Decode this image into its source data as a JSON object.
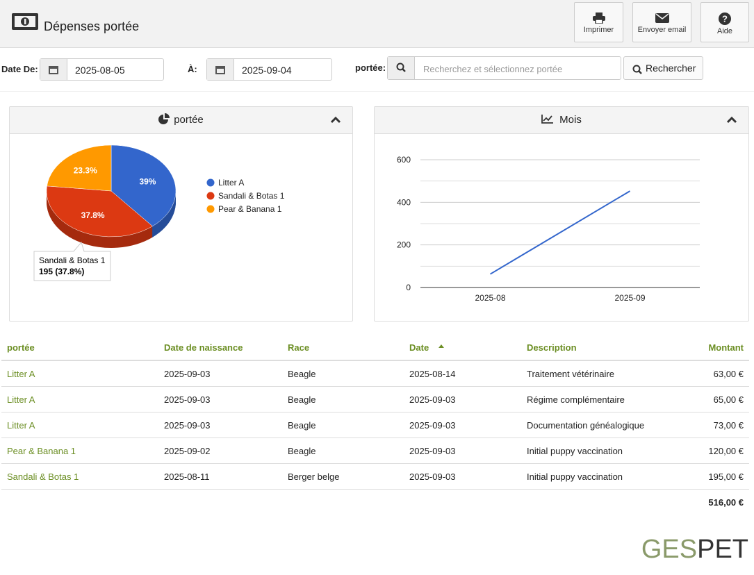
{
  "header": {
    "title": "Dépenses portée",
    "buttons": [
      "Imprimer",
      "Envoyer email",
      "Aide"
    ]
  },
  "filters": {
    "date_from_label": "Date De:",
    "date_from": "2025-08-05",
    "date_to_label": "À:",
    "date_to": "2025-09-04",
    "litter_label": "portée:",
    "search_placeholder": "Recherchez et sélectionnez portée",
    "search_button": "Rechercher"
  },
  "chart_data": [
    {
      "type": "pie",
      "title": "portée",
      "categories": [
        "Litter A",
        "Sandali & Botas 1",
        "Pear & Banana 1"
      ],
      "values": [
        39,
        37.8,
        23.3
      ],
      "value_labels": [
        "39%",
        "37.8%",
        "23.3%"
      ],
      "colors": [
        "#3366cc",
        "#dc3912",
        "#ff9900"
      ],
      "legend": "right",
      "tooltip": "195 (37.8%)"
    },
    {
      "type": "line",
      "title": "Mois",
      "categories": [
        "2025-08",
        "2025-09"
      ],
      "series": [
        {
          "name": "Mois",
          "color": "#3366cc",
          "values": [
            63,
            453
          ]
        }
      ],
      "ylim": [
        0,
        600
      ],
      "yticks": [
        0,
        200,
        400,
        600
      ],
      "minor_yticks": [
        100,
        300,
        500
      ],
      "grid": true
    }
  ],
  "table": {
    "columns": [
      "portée",
      "Date de naissance",
      "Race",
      "Date",
      "Description",
      "Montant"
    ],
    "sort_column": 3,
    "rows": [
      [
        "Litter A",
        "2025-09-03",
        "Beagle",
        "2025-08-14",
        "Traitement vétérinaire",
        "63,00 €"
      ],
      [
        "Litter A",
        "2025-09-03",
        "Beagle",
        "2025-09-03",
        "Régime complémentaire",
        "65,00 €"
      ],
      [
        "Litter A",
        "2025-09-03",
        "Beagle",
        "2025-09-03",
        "Documentation généalogique",
        "73,00 €"
      ],
      [
        "Pear & Banana 1",
        "2025-09-02",
        "Beagle",
        "2025-09-03",
        "Initial puppy vaccination",
        "120,00 €"
      ],
      [
        "Sandali & Botas 1",
        "2025-08-11",
        "Berger belge",
        "2025-09-03",
        "Initial puppy vaccination",
        "195,00 €"
      ]
    ],
    "total": "516,00 €"
  },
  "footer": {
    "logo": [
      "GES",
      "PET"
    ]
  }
}
